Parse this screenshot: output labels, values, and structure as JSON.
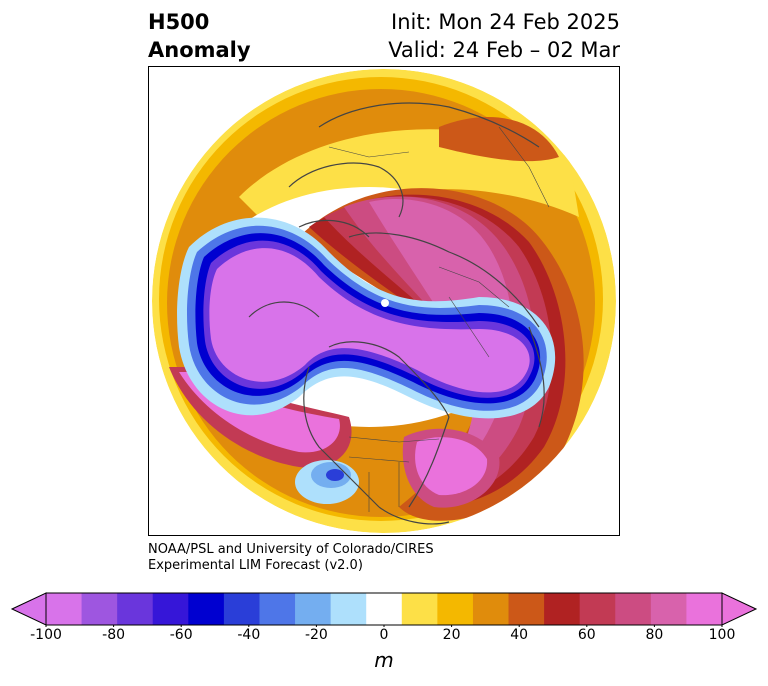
{
  "title": {
    "line1": "H500",
    "line2": "Anomaly",
    "init": "Init: Mon 24 Feb 2025",
    "valid": "Valid: 24 Feb – 02 Mar"
  },
  "credit": {
    "line1": "NOAA/PSL and University of Colorado/CIRES",
    "line2": "Experimental LIM Forecast (v2.0)"
  },
  "colorbar": {
    "unit_label": "m",
    "ticks": [
      "-100",
      "-80",
      "-60",
      "-40",
      "-20",
      "0",
      "20",
      "40",
      "60",
      "80",
      "100"
    ],
    "tick_values": [
      -100,
      -80,
      -60,
      -40,
      -20,
      0,
      20,
      40,
      60,
      80,
      100
    ],
    "levels": [
      -100,
      -90,
      -80,
      -70,
      -60,
      -50,
      -40,
      -30,
      -20,
      -10,
      10,
      20,
      30,
      40,
      50,
      60,
      70,
      80,
      90,
      100
    ],
    "colors": [
      "#d873ea",
      "#9e56e0",
      "#6a36dc",
      "#3616d8",
      "#0000d0",
      "#2a3ed8",
      "#4e76e8",
      "#74aef0",
      "#aee0fc",
      "#ffffff",
      "#fde047",
      "#f4b800",
      "#e08c0c",
      "#cc5818",
      "#b02222",
      "#c23a54",
      "#cc4c82",
      "#d862ac",
      "#ea72dc"
    ],
    "extend_min_color": "#d873ea",
    "extend_max_color": "#ea72dc"
  }
}
